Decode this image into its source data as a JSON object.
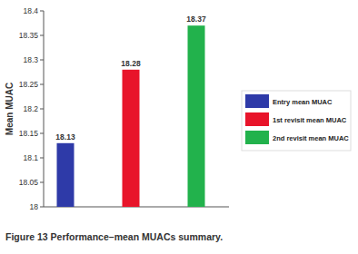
{
  "chart_data": {
    "type": "bar",
    "title": "Figure 13 Performance–mean MUACs summary.",
    "y_label": "Mean MUAC",
    "categories": [
      "Entry mean MUAC",
      "1st revisit mean MUAC",
      "2nd revisit mean MUAC"
    ],
    "values": [
      18.13,
      18.28,
      18.37
    ],
    "colors": [
      "#2e3aa8",
      "#e8142a",
      "#22b24c"
    ],
    "ylim": [
      18,
      18.4
    ],
    "yticks": [
      18,
      18.05,
      18.1,
      18.15,
      18.2,
      18.25,
      18.3,
      18.35,
      18.4
    ],
    "grid": false,
    "legend": "right",
    "data_labels": true,
    "tick_labels": "y"
  }
}
